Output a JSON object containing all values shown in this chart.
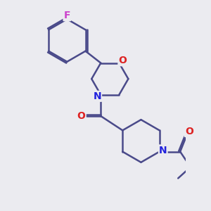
{
  "background_color": "#ebebf0",
  "bond_color": "#4a4a8a",
  "bond_width": 1.8,
  "atom_colors": {
    "F": "#cc44cc",
    "O": "#dd2222",
    "N": "#2222dd",
    "C": "#4a4a8a"
  },
  "font_size": 9,
  "figsize": [
    3.0,
    3.0
  ],
  "dpi": 100
}
